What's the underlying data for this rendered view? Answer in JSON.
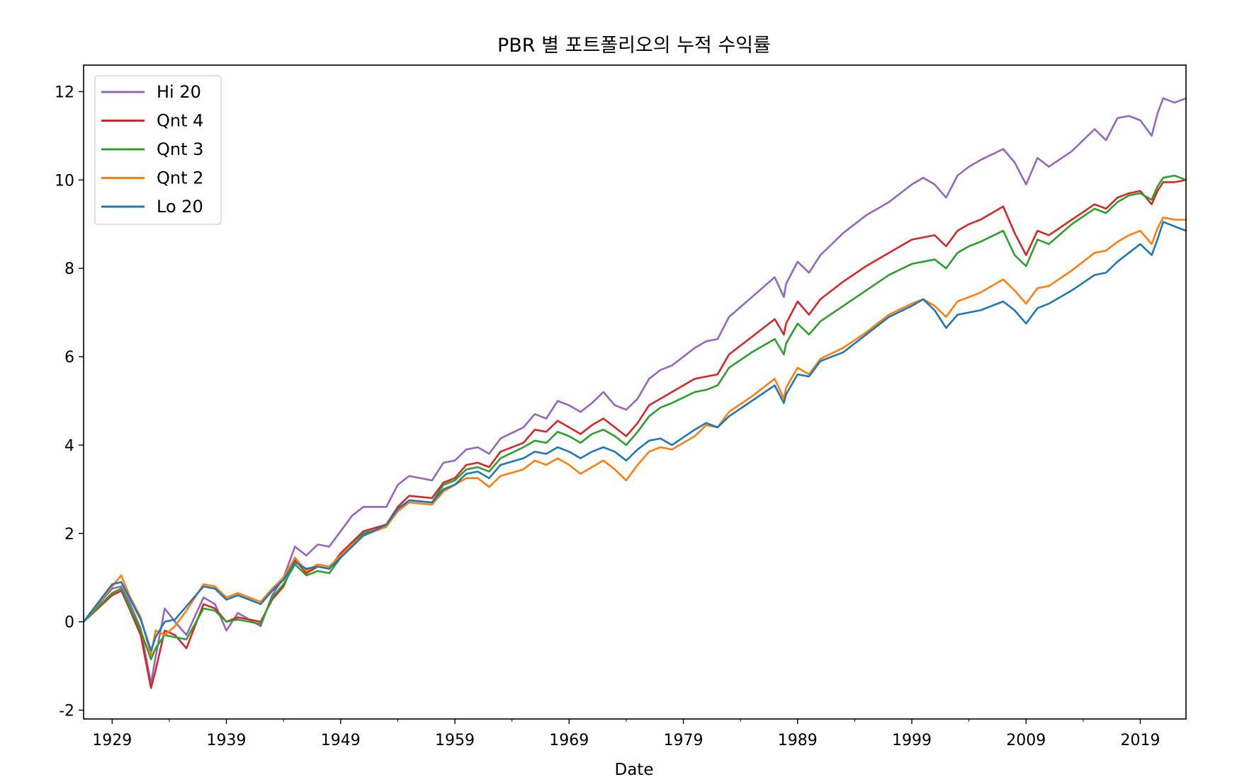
{
  "chart_data": {
    "type": "line",
    "title": "PBR 별 포트폴리오의 누적 수익률",
    "xlabel": "Date",
    "ylabel": "",
    "xlim": [
      1926.5,
      2023.0
    ],
    "ylim": [
      -2.2,
      12.6
    ],
    "x_ticks": [
      1929,
      1939,
      1949,
      1959,
      1969,
      1979,
      1989,
      1999,
      2009,
      2019
    ],
    "x_tick_labels": [
      "1929",
      "1939",
      "1949",
      "1959",
      "1969",
      "1979",
      "1989",
      "1999",
      "2009",
      "2019"
    ],
    "y_ticks": [
      -2,
      0,
      2,
      4,
      6,
      8,
      10,
      12
    ],
    "y_tick_labels": [
      "-2",
      "0",
      "2",
      "4",
      "6",
      "8",
      "10",
      "12"
    ],
    "grid": false,
    "legend_position": "top-left",
    "series": [
      {
        "name": "Hi 20",
        "color": "#9467bd",
        "x": [
          1926.5,
          1929,
          1929.8,
          1930.5,
          1931.5,
          1932.4,
          1932.8,
          1933.6,
          1934.5,
          1935.5,
          1937,
          1938,
          1939,
          1940,
          1941,
          1942,
          1943,
          1944,
          1945,
          1946,
          1947,
          1948,
          1949,
          1950,
          1951,
          1953,
          1954,
          1955,
          1957,
          1958,
          1959,
          1960,
          1961,
          1962,
          1963,
          1965,
          1966,
          1967,
          1968,
          1969,
          1970,
          1971,
          1972,
          1973,
          1974,
          1975,
          1976,
          1977,
          1978,
          1980,
          1981,
          1982,
          1983,
          1985,
          1987,
          1987.8,
          1988,
          1989,
          1990,
          1991,
          1993,
          1995,
          1997,
          1999,
          2000,
          2001,
          2002,
          2003,
          2004,
          2005,
          2007,
          2008,
          2009,
          2010,
          2011,
          2013,
          2015,
          2016,
          2017,
          2018,
          2019,
          2020,
          2020.5,
          2021,
          2022,
          2023
        ],
        "y": [
          0.0,
          0.75,
          0.8,
          0.45,
          -0.15,
          -1.4,
          -0.8,
          0.3,
          0.0,
          -0.3,
          0.55,
          0.4,
          -0.2,
          0.2,
          0.05,
          -0.1,
          0.6,
          1.0,
          1.7,
          1.5,
          1.75,
          1.7,
          2.05,
          2.4,
          2.6,
          2.6,
          3.1,
          3.3,
          3.2,
          3.6,
          3.65,
          3.9,
          3.95,
          3.8,
          4.15,
          4.4,
          4.7,
          4.6,
          5.0,
          4.9,
          4.75,
          4.95,
          5.2,
          4.9,
          4.8,
          5.05,
          5.5,
          5.7,
          5.8,
          6.2,
          6.35,
          6.4,
          6.9,
          7.35,
          7.8,
          7.35,
          7.65,
          8.15,
          7.9,
          8.3,
          8.8,
          9.2,
          9.5,
          9.9,
          10.05,
          9.9,
          9.6,
          10.1,
          10.3,
          10.45,
          10.7,
          10.4,
          9.9,
          10.5,
          10.3,
          10.65,
          11.15,
          10.9,
          11.4,
          11.45,
          11.35,
          11.0,
          11.5,
          11.85,
          11.75,
          11.85
        ]
      },
      {
        "name": "Qnt 4",
        "color": "#d62728",
        "x": [
          1926.5,
          1929,
          1929.8,
          1930.5,
          1931.5,
          1932.4,
          1932.8,
          1933.6,
          1934.5,
          1935.5,
          1937,
          1938,
          1939,
          1940,
          1941,
          1942,
          1943,
          1944,
          1945,
          1946,
          1947,
          1948,
          1949,
          1950,
          1951,
          1953,
          1954,
          1955,
          1957,
          1958,
          1959,
          1960,
          1961,
          1962,
          1963,
          1965,
          1966,
          1967,
          1968,
          1969,
          1970,
          1971,
          1972,
          1973,
          1974,
          1975,
          1976,
          1977,
          1978,
          1980,
          1981,
          1982,
          1983,
          1985,
          1987,
          1987.8,
          1988,
          1989,
          1990,
          1991,
          1993,
          1995,
          1997,
          1999,
          2000,
          2001,
          2002,
          2003,
          2004,
          2005,
          2007,
          2008,
          2009,
          2010,
          2011,
          2013,
          2015,
          2016,
          2017,
          2018,
          2019,
          2020,
          2020.5,
          2021,
          2022,
          2023
        ],
        "y": [
          0.0,
          0.6,
          0.7,
          0.3,
          -0.3,
          -1.5,
          -1.1,
          -0.2,
          -0.3,
          -0.6,
          0.4,
          0.3,
          0.0,
          0.1,
          0.05,
          0.0,
          0.5,
          0.8,
          1.4,
          1.1,
          1.25,
          1.2,
          1.55,
          1.8,
          2.05,
          2.2,
          2.6,
          2.85,
          2.8,
          3.15,
          3.25,
          3.55,
          3.6,
          3.5,
          3.85,
          4.05,
          4.35,
          4.3,
          4.55,
          4.4,
          4.25,
          4.45,
          4.6,
          4.4,
          4.2,
          4.5,
          4.9,
          5.05,
          5.2,
          5.5,
          5.55,
          5.6,
          6.05,
          6.45,
          6.85,
          6.5,
          6.75,
          7.25,
          6.95,
          7.3,
          7.7,
          8.05,
          8.35,
          8.65,
          8.7,
          8.75,
          8.5,
          8.85,
          9.0,
          9.1,
          9.4,
          8.8,
          8.3,
          8.85,
          8.75,
          9.1,
          9.45,
          9.35,
          9.6,
          9.7,
          9.75,
          9.45,
          9.75,
          9.95,
          9.95,
          10.0
        ]
      },
      {
        "name": "Qnt 3",
        "color": "#2ca02c",
        "x": [
          1926.5,
          1929,
          1929.8,
          1930.5,
          1931.5,
          1932.4,
          1932.8,
          1933.6,
          1934.5,
          1935.5,
          1937,
          1938,
          1939,
          1940,
          1941,
          1942,
          1943,
          1944,
          1945,
          1946,
          1947,
          1948,
          1949,
          1950,
          1951,
          1953,
          1954,
          1955,
          1957,
          1958,
          1959,
          1960,
          1961,
          1962,
          1963,
          1965,
          1966,
          1967,
          1968,
          1969,
          1970,
          1971,
          1972,
          1973,
          1974,
          1975,
          1976,
          1977,
          1978,
          1980,
          1981,
          1982,
          1983,
          1985,
          1987,
          1987.8,
          1988,
          1989,
          1990,
          1991,
          1993,
          1995,
          1997,
          1999,
          2000,
          2001,
          2002,
          2003,
          2004,
          2005,
          2007,
          2008,
          2009,
          2010,
          2011,
          2013,
          2015,
          2016,
          2017,
          2018,
          2019,
          2020,
          2020.5,
          2021,
          2022,
          2023
        ],
        "y": [
          0.0,
          0.65,
          0.75,
          0.35,
          -0.2,
          -0.85,
          -0.6,
          -0.3,
          -0.35,
          -0.4,
          0.3,
          0.25,
          0.0,
          0.05,
          0.0,
          -0.05,
          0.55,
          0.85,
          1.3,
          1.05,
          1.15,
          1.1,
          1.45,
          1.75,
          2.0,
          2.15,
          2.55,
          2.75,
          2.7,
          3.1,
          3.2,
          3.45,
          3.5,
          3.4,
          3.7,
          3.95,
          4.1,
          4.05,
          4.3,
          4.2,
          4.05,
          4.25,
          4.35,
          4.2,
          4.0,
          4.3,
          4.65,
          4.85,
          4.95,
          5.2,
          5.25,
          5.35,
          5.75,
          6.1,
          6.4,
          6.05,
          6.3,
          6.75,
          6.5,
          6.8,
          7.15,
          7.5,
          7.85,
          8.1,
          8.15,
          8.2,
          8.0,
          8.35,
          8.5,
          8.6,
          8.85,
          8.3,
          8.05,
          8.65,
          8.55,
          9.0,
          9.35,
          9.25,
          9.5,
          9.65,
          9.7,
          9.55,
          9.85,
          10.05,
          10.1,
          10.0
        ]
      },
      {
        "name": "Qnt 2",
        "color": "#ff7f0e",
        "x": [
          1926.5,
          1929,
          1929.8,
          1930.5,
          1931.5,
          1932.4,
          1932.8,
          1933.6,
          1934.5,
          1935.5,
          1937,
          1938,
          1939,
          1940,
          1941,
          1942,
          1943,
          1944,
          1945,
          1946,
          1947,
          1948,
          1949,
          1950,
          1951,
          1953,
          1954,
          1955,
          1957,
          1958,
          1959,
          1960,
          1961,
          1962,
          1963,
          1965,
          1966,
          1967,
          1968,
          1969,
          1970,
          1971,
          1972,
          1973,
          1974,
          1975,
          1976,
          1977,
          1978,
          1980,
          1981,
          1982,
          1983,
          1985,
          1987,
          1987.8,
          1988,
          1989,
          1990,
          1991,
          1993,
          1995,
          1997,
          1999,
          2000,
          2001,
          2002,
          2003,
          2004,
          2005,
          2007,
          2008,
          2009,
          2010,
          2011,
          2013,
          2015,
          2016,
          2017,
          2018,
          2019,
          2020,
          2020.5,
          2021,
          2022,
          2023
        ],
        "y": [
          0.0,
          0.8,
          1.05,
          0.6,
          0.1,
          -0.75,
          -0.2,
          -0.3,
          -0.1,
          0.25,
          0.85,
          0.8,
          0.55,
          0.65,
          0.55,
          0.45,
          0.75,
          1.0,
          1.45,
          1.15,
          1.3,
          1.25,
          1.5,
          1.75,
          1.95,
          2.15,
          2.5,
          2.7,
          2.65,
          2.95,
          3.1,
          3.25,
          3.25,
          3.05,
          3.3,
          3.45,
          3.65,
          3.55,
          3.7,
          3.55,
          3.35,
          3.5,
          3.65,
          3.45,
          3.2,
          3.55,
          3.85,
          3.95,
          3.9,
          4.2,
          4.45,
          4.4,
          4.75,
          5.1,
          5.5,
          5.05,
          5.3,
          5.75,
          5.6,
          5.95,
          6.2,
          6.55,
          6.95,
          7.2,
          7.3,
          7.15,
          6.9,
          7.25,
          7.35,
          7.45,
          7.75,
          7.5,
          7.2,
          7.55,
          7.6,
          7.95,
          8.35,
          8.4,
          8.6,
          8.75,
          8.85,
          8.55,
          8.9,
          9.15,
          9.1,
          9.1
        ]
      },
      {
        "name": "Lo 20",
        "color": "#1f77b4",
        "x": [
          1926.5,
          1929,
          1929.8,
          1930.5,
          1931.5,
          1932.4,
          1932.8,
          1933.6,
          1934.5,
          1935.5,
          1937,
          1938,
          1939,
          1940,
          1941,
          1942,
          1943,
          1944,
          1945,
          1946,
          1947,
          1948,
          1949,
          1950,
          1951,
          1953,
          1954,
          1955,
          1957,
          1958,
          1959,
          1960,
          1961,
          1962,
          1963,
          1965,
          1966,
          1967,
          1968,
          1969,
          1970,
          1971,
          1972,
          1973,
          1974,
          1975,
          1976,
          1977,
          1978,
          1980,
          1981,
          1982,
          1983,
          1985,
          1987,
          1987.8,
          1988,
          1989,
          1990,
          1991,
          1993,
          1995,
          1997,
          1999,
          2000,
          2001,
          2002,
          2003,
          2004,
          2005,
          2007,
          2008,
          2009,
          2010,
          2011,
          2013,
          2015,
          2016,
          2017,
          2018,
          2019,
          2020,
          2020.5,
          2021,
          2022,
          2023
        ],
        "y": [
          0.0,
          0.85,
          0.9,
          0.55,
          0.05,
          -0.65,
          -0.35,
          0.0,
          0.05,
          0.35,
          0.8,
          0.75,
          0.5,
          0.6,
          0.5,
          0.4,
          0.7,
          0.95,
          1.35,
          1.2,
          1.25,
          1.2,
          1.45,
          1.7,
          1.95,
          2.2,
          2.55,
          2.75,
          2.7,
          3.0,
          3.1,
          3.35,
          3.4,
          3.25,
          3.55,
          3.7,
          3.85,
          3.8,
          3.95,
          3.85,
          3.7,
          3.85,
          3.95,
          3.85,
          3.65,
          3.9,
          4.1,
          4.15,
          4.0,
          4.35,
          4.5,
          4.4,
          4.65,
          5.0,
          5.35,
          4.95,
          5.15,
          5.6,
          5.55,
          5.9,
          6.1,
          6.5,
          6.9,
          7.15,
          7.3,
          7.05,
          6.65,
          6.95,
          7.0,
          7.05,
          7.25,
          7.05,
          6.75,
          7.1,
          7.2,
          7.5,
          7.85,
          7.9,
          8.15,
          8.35,
          8.55,
          8.3,
          8.65,
          9.05,
          8.95,
          8.85
        ]
      }
    ]
  }
}
